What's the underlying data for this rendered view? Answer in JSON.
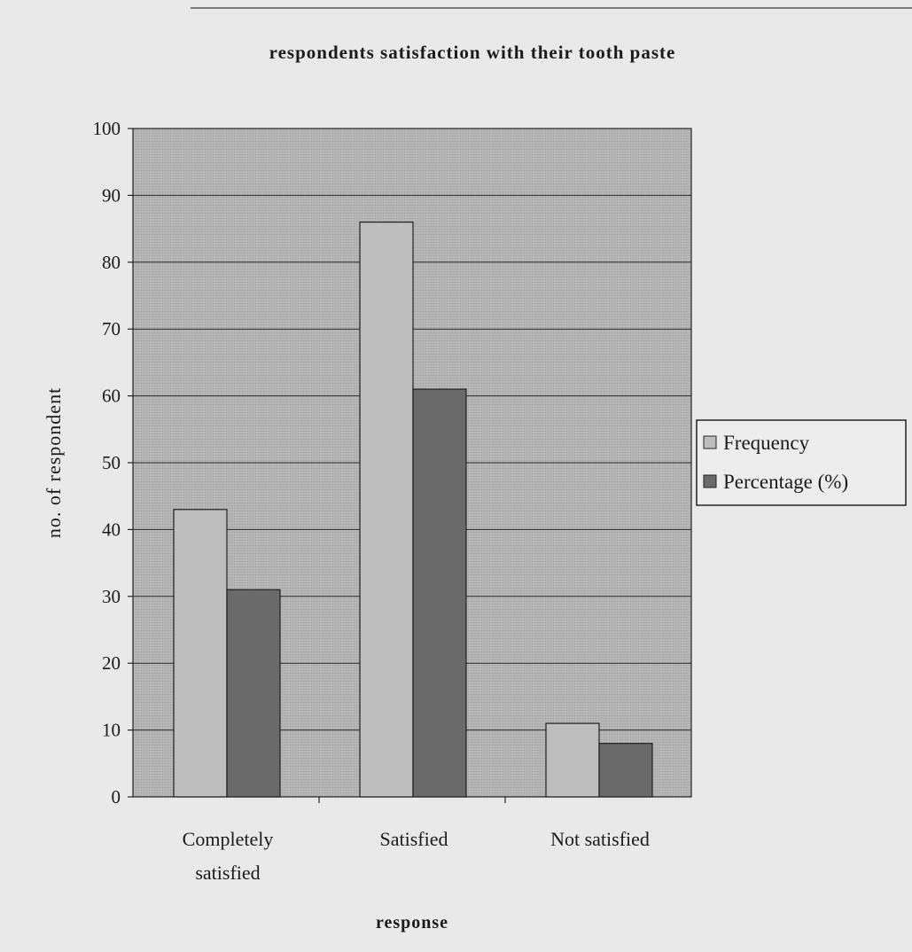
{
  "chart_data": {
    "type": "bar",
    "title": "respondents satisfaction with their tooth paste",
    "xlabel": "response",
    "ylabel": "no. of respondent",
    "ylim": [
      0,
      100
    ],
    "yticks": [
      0,
      10,
      20,
      30,
      40,
      50,
      60,
      70,
      80,
      90,
      100
    ],
    "grid": true,
    "legend_position": "right",
    "categories": [
      [
        "Completely",
        "satisfied"
      ],
      [
        "Satisfied"
      ],
      [
        "Not  satisfied"
      ]
    ],
    "series": [
      {
        "name": "Frequency",
        "values": [
          43,
          86,
          11
        ],
        "color": "#bdbdbd"
      },
      {
        "name": "Percentage (%)",
        "values": [
          31,
          61,
          8
        ],
        "color": "#6a6a6a"
      }
    ]
  }
}
